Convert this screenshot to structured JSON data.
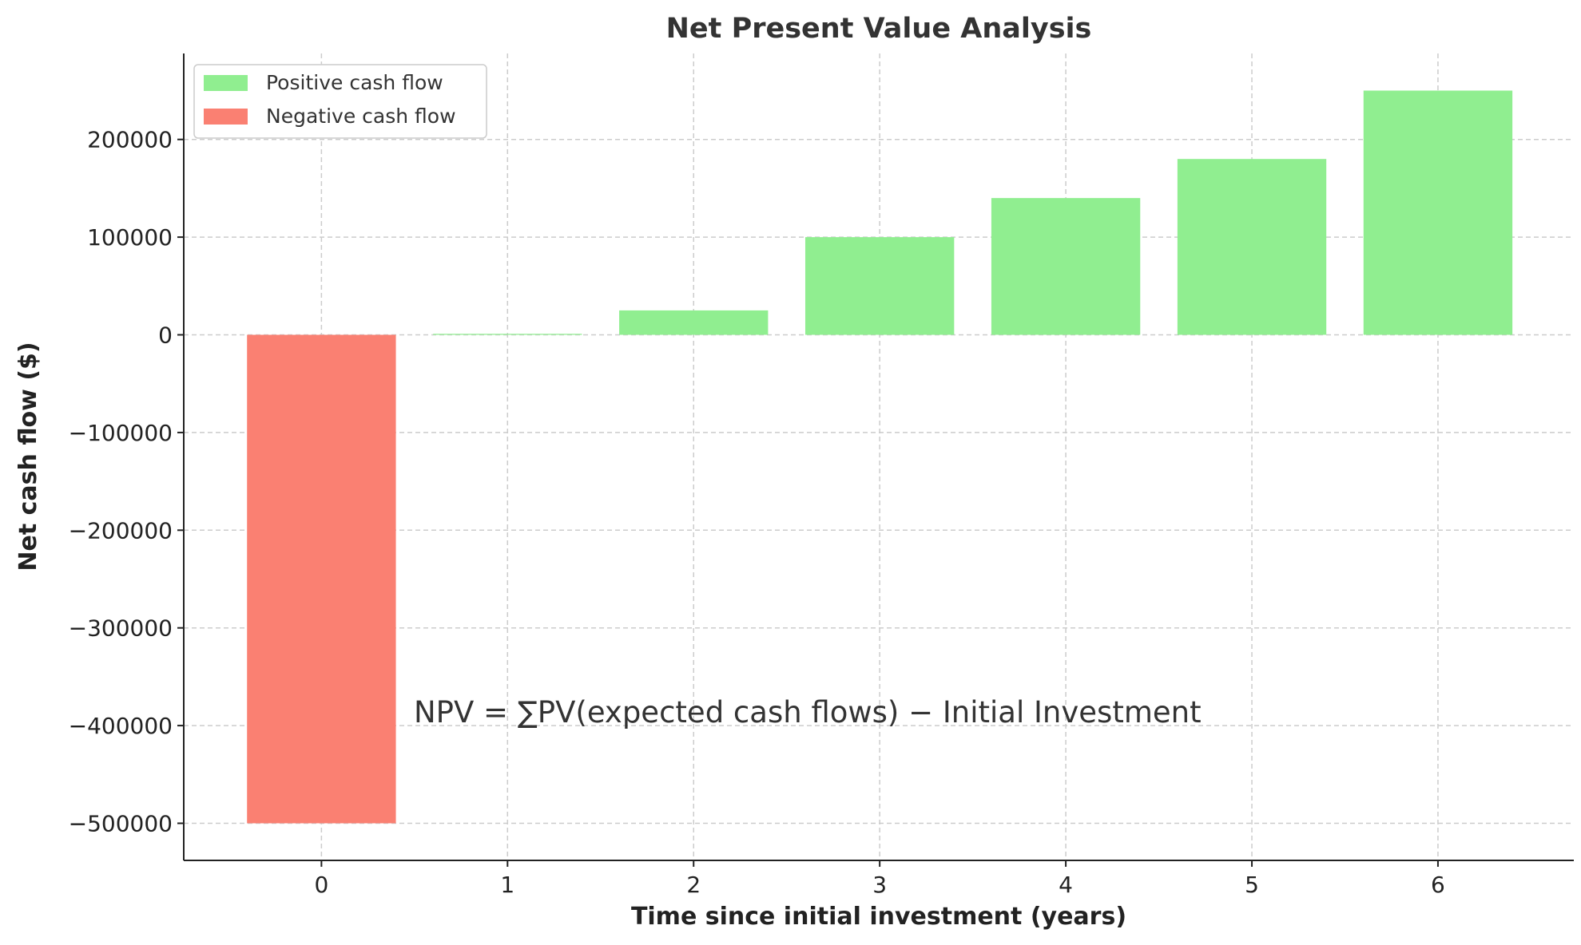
{
  "chart_data": {
    "type": "bar",
    "title": "Net Present Value Analysis",
    "xlabel": "Time since initial investment (years)",
    "ylabel": "Net cash flow ($)",
    "categories": [
      0,
      1,
      2,
      3,
      4,
      5,
      6
    ],
    "values": [
      -500000,
      1000,
      25000,
      100000,
      140000,
      180000,
      250000
    ],
    "xlim": [
      -0.74,
      6.73
    ],
    "ylim": [
      -538000,
      288000
    ],
    "yticks": [
      -500000,
      -400000,
      -300000,
      -200000,
      -100000,
      0,
      100000,
      200000
    ],
    "ytick_labels": [
      "−500000",
      "−400000",
      "−300000",
      "−200000",
      "−100000",
      "0",
      "100000",
      "200000"
    ],
    "xtick_labels": [
      "0",
      "1",
      "2",
      "3",
      "4",
      "5",
      "6"
    ],
    "grid": true,
    "legend": {
      "placement": "top-left",
      "entries": [
        {
          "label": "Positive cash flow",
          "color": "#90ee90"
        },
        {
          "label": "Negative cash flow",
          "color": "#fa8072"
        }
      ]
    },
    "annotation": "NPV = ∑PV(expected cash flows) − Initial Investment",
    "colors": {
      "positive": "#90ee90",
      "negative": "#fa8072"
    }
  }
}
